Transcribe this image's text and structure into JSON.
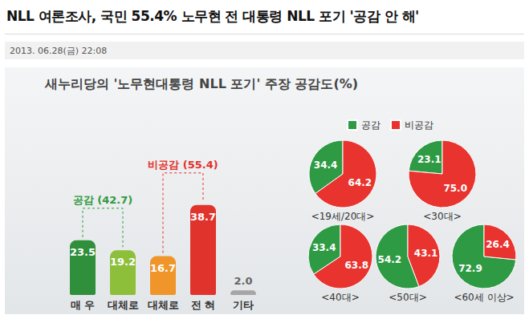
{
  "header": {
    "title": "NLL 여론조사, 국민 55.4% 노무현 전 대통령 NLL 포기 '공감 안 해'",
    "date": "2013. 06.28(금) 22:08"
  },
  "chart_data": [
    {
      "type": "bar",
      "title": "새누리당의 '노무현대통령 NLL 포기' 주장 공감도(%)",
      "categories": [
        "매 우",
        "대체로",
        "대체로",
        "전 혀",
        "기타"
      ],
      "values": [
        23.5,
        19.2,
        16.7,
        38.7,
        2.0
      ],
      "value_labels": [
        "23.5",
        "19.2",
        "16.7",
        "38.7",
        "2.0"
      ],
      "colors": [
        "#2f8f3a",
        "#8dbf3b",
        "#f0952a",
        "#e0332c",
        "#a6a6a6"
      ],
      "ylim": [
        0,
        40
      ],
      "grid": false,
      "data_labels": true,
      "tick_labels": "x",
      "annotations": [
        {
          "text": "공감 (42.7)",
          "color": "#2e9a3e"
        },
        {
          "text": "비공감 (55.4)",
          "color": "#e3302b"
        }
      ]
    },
    {
      "type": "pie",
      "title": "<19세/20대>",
      "categories": [
        "공감",
        "비공감"
      ],
      "values": [
        34.4,
        64.2
      ],
      "value_labels": [
        "34.4",
        "64.2"
      ],
      "colors": [
        "#2f9a44",
        "#e8332f"
      ],
      "data_labels": true,
      "legend": "top-right"
    },
    {
      "type": "pie",
      "title": "<30대>",
      "categories": [
        "공감",
        "비공감"
      ],
      "values": [
        23.1,
        75.0
      ],
      "value_labels": [
        "23.1",
        "75.0"
      ],
      "colors": [
        "#2f9a44",
        "#e8332f"
      ],
      "data_labels": true,
      "legend": "top-right"
    },
    {
      "type": "pie",
      "title": "<40대>",
      "categories": [
        "공감",
        "비공감"
      ],
      "values": [
        33.4,
        63.8
      ],
      "value_labels": [
        "33.4",
        "63.8"
      ],
      "colors": [
        "#2f9a44",
        "#e8332f"
      ],
      "data_labels": true,
      "legend": "top-right"
    },
    {
      "type": "pie",
      "title": "<50대>",
      "categories": [
        "공감",
        "비공감"
      ],
      "values": [
        54.2,
        43.1
      ],
      "value_labels": [
        "54.2",
        "43.1"
      ],
      "colors": [
        "#2f9a44",
        "#e8332f"
      ],
      "data_labels": true,
      "legend": "top-right"
    },
    {
      "type": "pie",
      "title": "<60세 이상>",
      "categories": [
        "공감",
        "비공감"
      ],
      "values": [
        72.9,
        26.4
      ],
      "value_labels": [
        "72.9",
        "26.4"
      ],
      "colors": [
        "#2f9a44",
        "#e8332f"
      ],
      "data_labels": true,
      "legend": "top-right"
    }
  ]
}
